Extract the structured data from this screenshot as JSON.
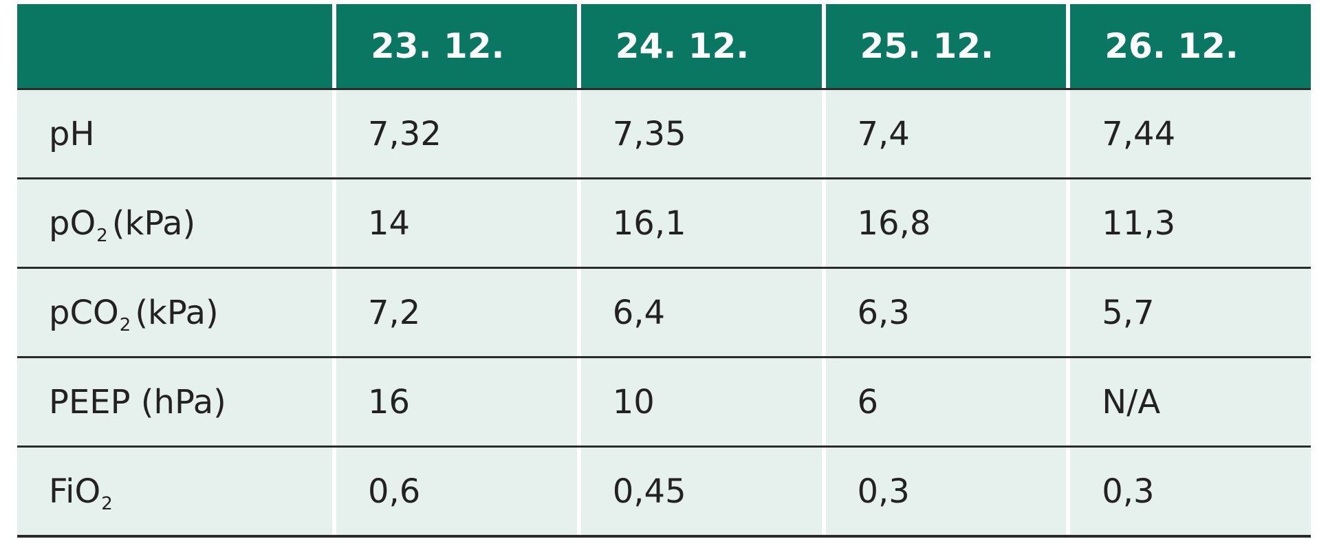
{
  "table": {
    "header": [
      "23. 12.",
      "24. 12.",
      "25. 12.",
      "26. 12."
    ],
    "rows": [
      {
        "label": {
          "main": "pH"
        },
        "cells": [
          "7,32",
          "7,35",
          "7,4",
          "7,44"
        ]
      },
      {
        "label": {
          "main": "pO",
          "sub": "2",
          "unit": "(kPa)"
        },
        "cells": [
          "14",
          "16,1",
          "16,8",
          "11,3"
        ]
      },
      {
        "label": {
          "main": "pCO",
          "sub": "2",
          "unit": "(kPa)"
        },
        "cells": [
          "7,2",
          "6,4",
          "6,3",
          "5,7"
        ]
      },
      {
        "label": {
          "main": "PEEP (hPa)"
        },
        "cells": [
          "16",
          "10",
          "6",
          "N/A"
        ]
      },
      {
        "label": {
          "main": "FiO",
          "sub": "2"
        },
        "cells": [
          "0,6",
          "0,45",
          "0,3",
          "0,3"
        ]
      }
    ]
  }
}
